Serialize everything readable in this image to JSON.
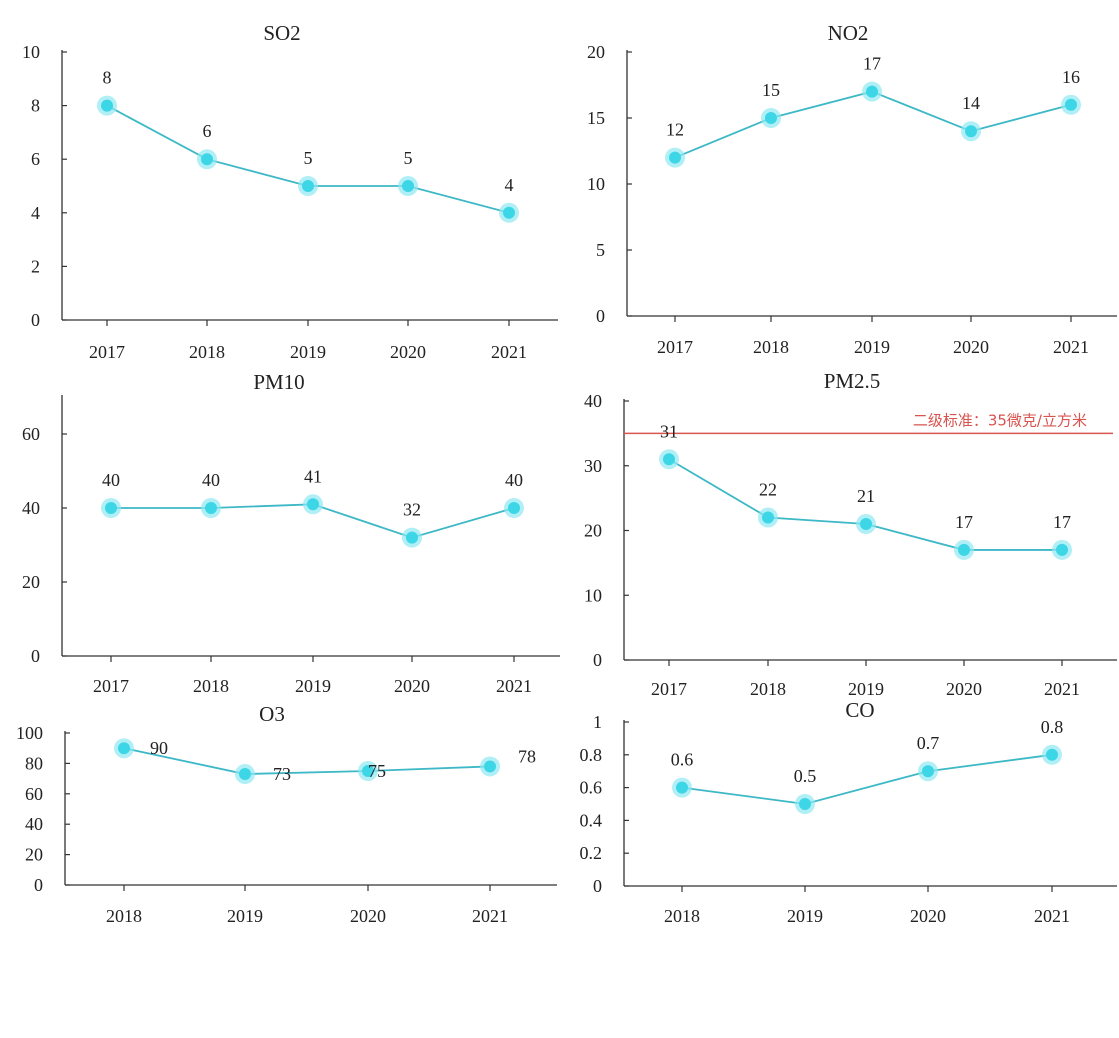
{
  "chart_data": [
    {
      "type": "line",
      "title": "SO2",
      "categories": [
        "2017",
        "2018",
        "2019",
        "2020",
        "2021"
      ],
      "values": [
        8,
        6,
        5,
        5,
        4
      ],
      "ylim": [
        0,
        10
      ],
      "yticks": [
        0,
        2,
        4,
        6,
        8,
        10
      ],
      "data_labels": [
        "8",
        "6",
        "5",
        "5",
        "4"
      ],
      "grid": false,
      "color": "#3cb8c6"
    },
    {
      "type": "line",
      "title": "NO2",
      "categories": [
        "2017",
        "2018",
        "2019",
        "2020",
        "2021"
      ],
      "values": [
        12,
        15,
        17,
        14,
        16
      ],
      "ylim": [
        0,
        20
      ],
      "yticks": [
        0,
        5,
        10,
        15,
        20
      ],
      "data_labels": [
        "12",
        "15",
        "17",
        "14",
        "16"
      ],
      "grid": false,
      "color": "#3cb8c6"
    },
    {
      "type": "line",
      "title": "PM10",
      "categories": [
        "2017",
        "2018",
        "2019",
        "2020",
        "2021"
      ],
      "values": [
        40,
        40,
        41,
        32,
        40
      ],
      "ylim": [
        0,
        70
      ],
      "yticks": [
        0,
        20,
        40,
        60
      ],
      "data_labels": [
        "40",
        "40",
        "41",
        "32",
        "40"
      ],
      "grid": false,
      "color": "#3cb8c6"
    },
    {
      "type": "line",
      "title": "PM2.5",
      "categories": [
        "2017",
        "2018",
        "2019",
        "2020",
        "2021"
      ],
      "values": [
        31,
        22,
        21,
        17,
        17
      ],
      "ylim": [
        0,
        40
      ],
      "yticks": [
        0,
        10,
        20,
        30,
        40
      ],
      "data_labels": [
        "31",
        "22",
        "21",
        "17",
        "17"
      ],
      "reference_line": {
        "value": 35,
        "label": "二级标准：35微克/立方米",
        "color": "#d9534f"
      },
      "grid": false,
      "color": "#3cb8c6"
    },
    {
      "type": "line",
      "title": "O3",
      "categories": [
        "2018",
        "2019",
        "2020",
        "2021"
      ],
      "values": [
        90,
        73,
        75,
        78
      ],
      "ylim": [
        0,
        100
      ],
      "yticks": [
        0,
        20,
        40,
        60,
        80,
        100
      ],
      "data_labels": [
        "90",
        "73",
        "75",
        "78"
      ],
      "grid": false,
      "color": "#3cb8c6"
    },
    {
      "type": "line",
      "title": "CO",
      "categories": [
        "2018",
        "2019",
        "2020",
        "2021"
      ],
      "values": [
        0.6,
        0.5,
        0.7,
        0.8
      ],
      "ylim": [
        0,
        1
      ],
      "yticks": [
        "0",
        "0.2",
        "0.4",
        "0.6",
        "0.8",
        "1"
      ],
      "data_labels": [
        "0.6",
        "0.5",
        "0.7",
        "0.8"
      ],
      "grid": false,
      "color": "#3cb8c6"
    }
  ]
}
